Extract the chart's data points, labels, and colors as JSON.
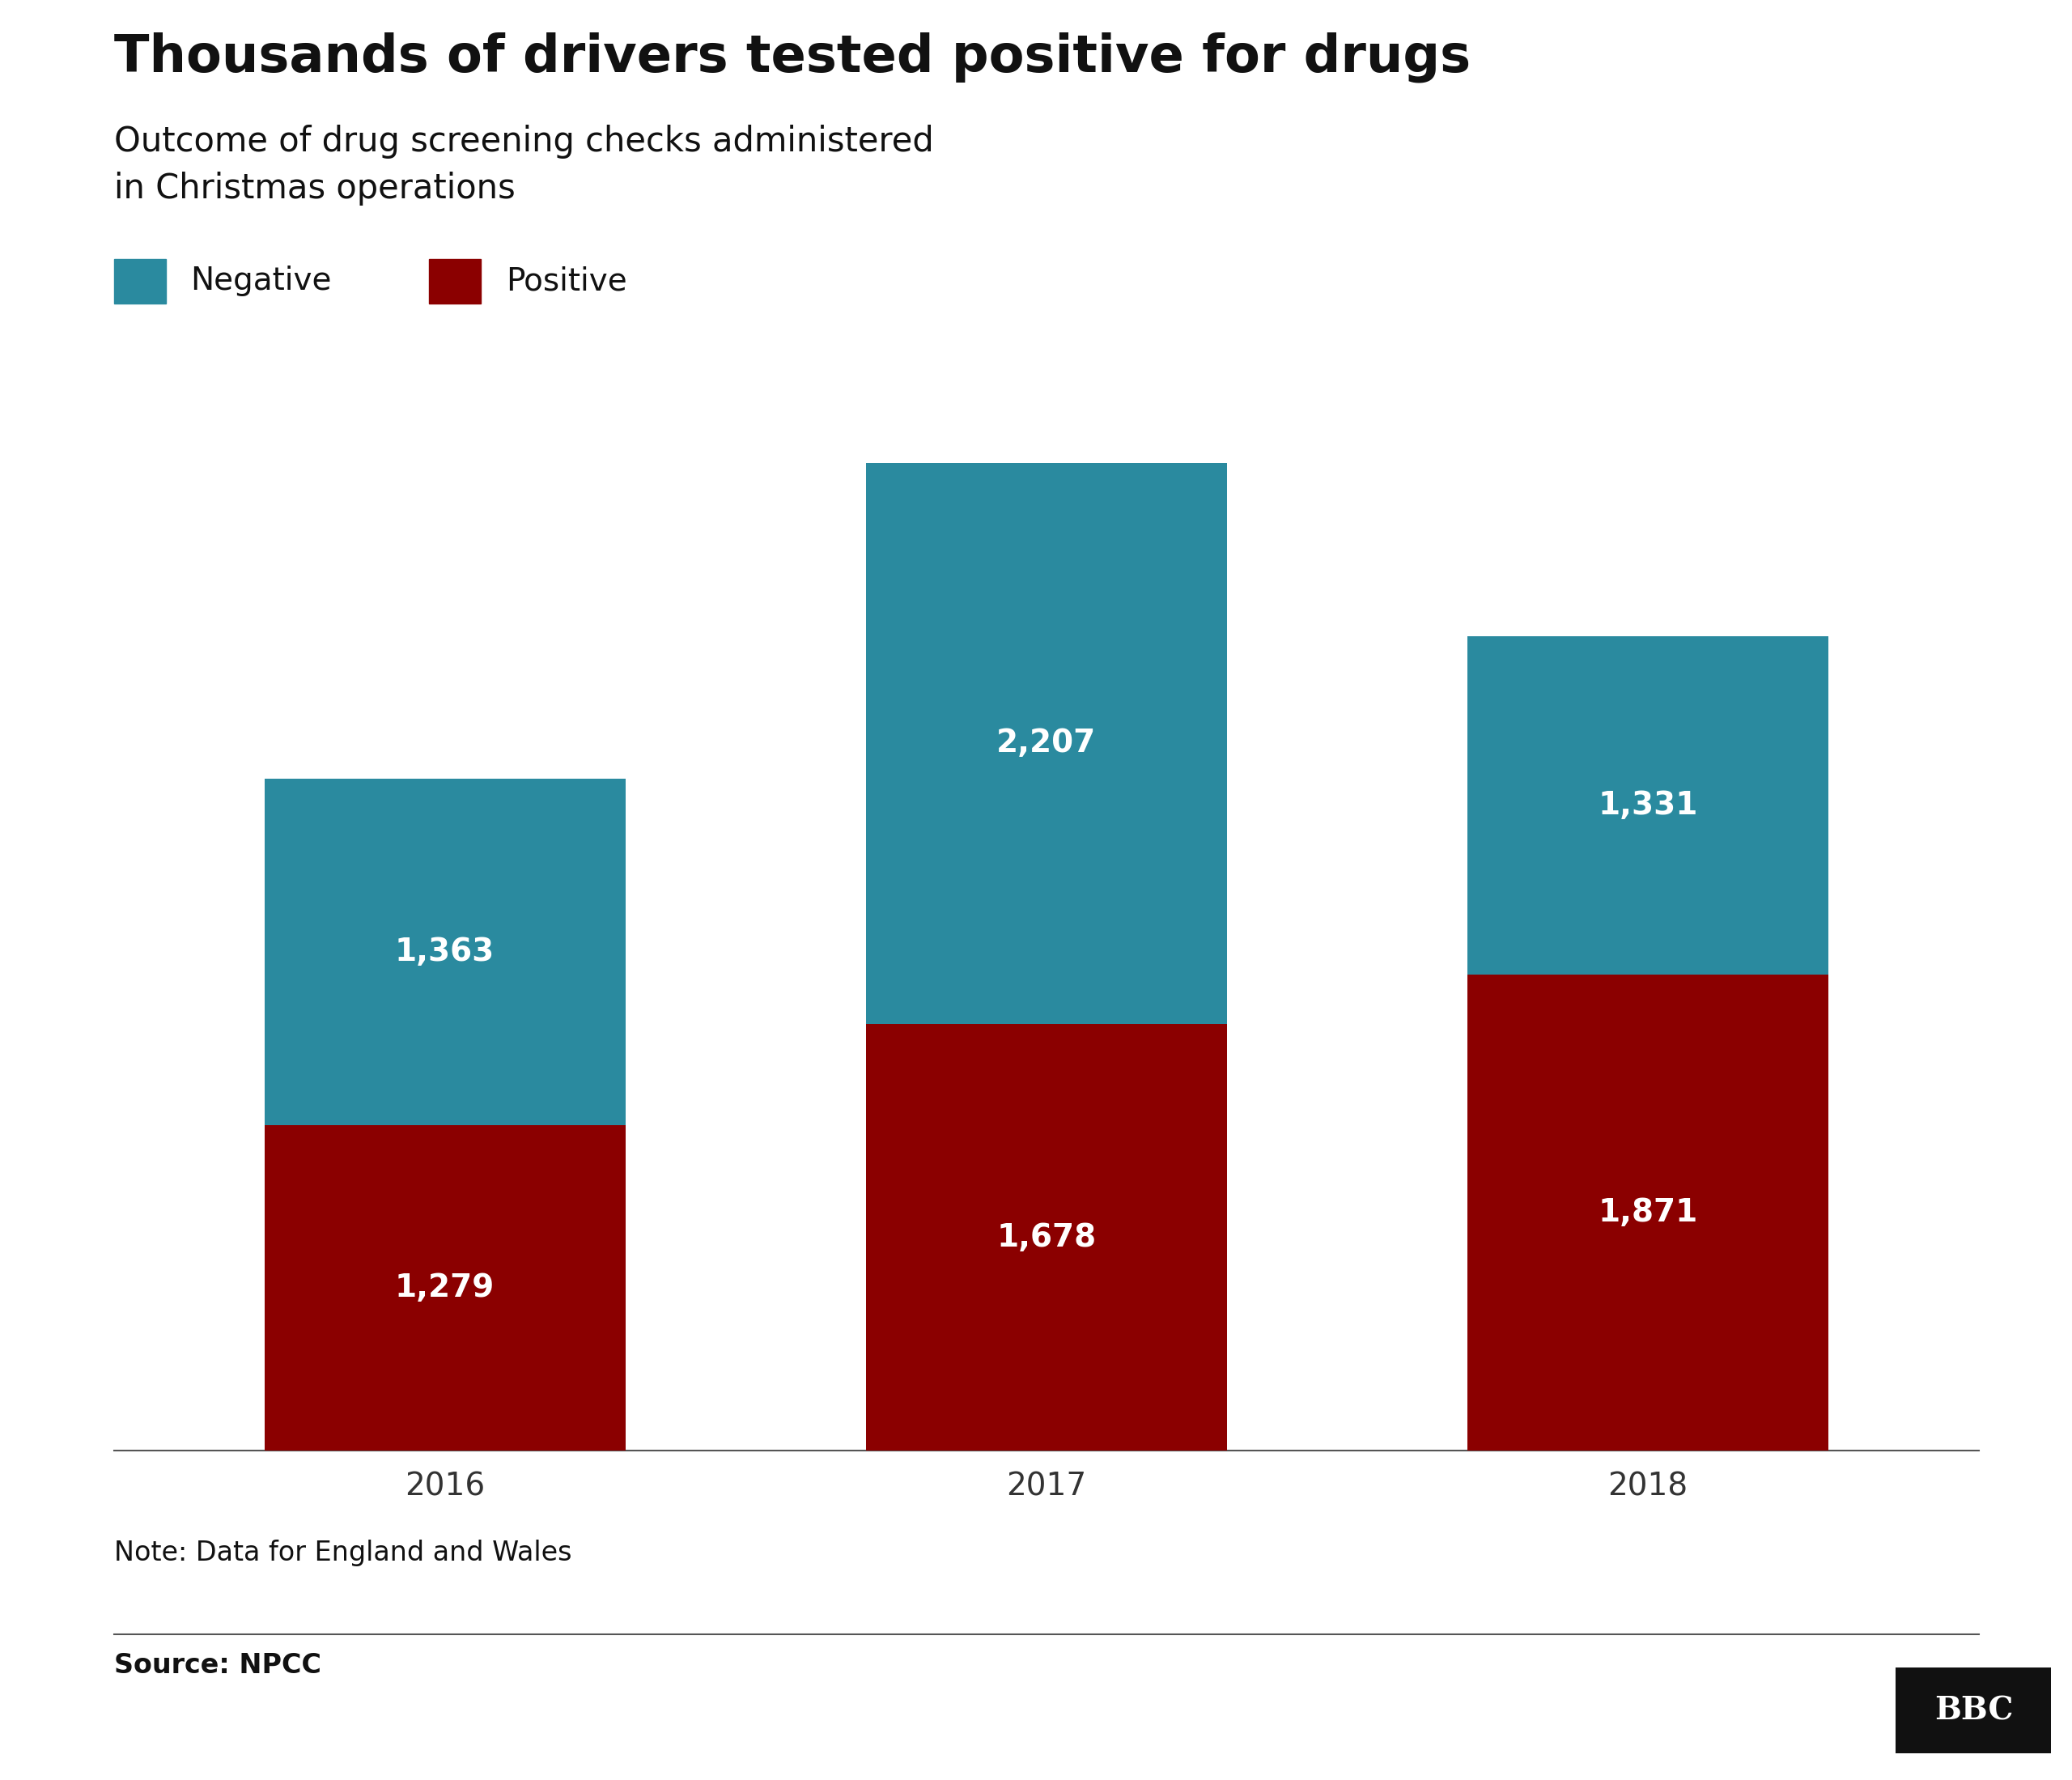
{
  "title": "Thousands of drivers tested positive for drugs",
  "subtitle_line1": "Outcome of drug screening checks administered",
  "subtitle_line2": "in Christmas operations",
  "years": [
    "2016",
    "2017",
    "2018"
  ],
  "positive": [
    1279,
    1678,
    1871
  ],
  "negative": [
    1363,
    2207,
    1331
  ],
  "positive_color": "#8B0000",
  "negative_color": "#2a8a9f",
  "bar_width": 0.6,
  "ylim": [
    0,
    4200
  ],
  "note": "Note: Data for England and Wales",
  "source": "Source: NPCC",
  "bbc_logo": "BBC",
  "background_color": "#ffffff",
  "title_fontsize": 46,
  "subtitle_fontsize": 30,
  "legend_fontsize": 28,
  "label_fontsize": 28,
  "tick_fontsize": 28,
  "note_fontsize": 24,
  "source_fontsize": 24,
  "legend_neg_label": "Negative",
  "legend_pos_label": "Positive"
}
